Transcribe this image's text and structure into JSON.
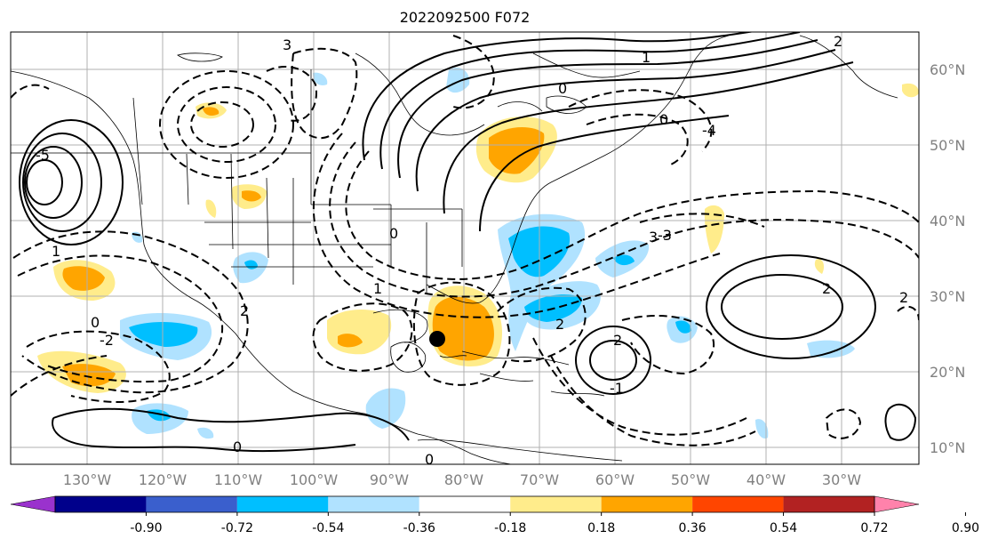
{
  "title": "2022092500 F072",
  "map": {
    "lat_labels": [
      "60°N",
      "50°N",
      "40°N",
      "30°N",
      "20°N",
      "10°N"
    ],
    "lon_labels": [
      "130°W",
      "120°W",
      "110°W",
      "100°W",
      "90°W",
      "80°W",
      "70°W",
      "60°W",
      "50°W",
      "40°W",
      "30°W"
    ],
    "contour_labels": [
      "3",
      "2",
      "1",
      "0",
      "-1",
      "-2",
      "-3",
      "-4",
      "-5",
      "1",
      "0",
      "2",
      "2",
      "2",
      "2",
      "0",
      "0",
      "0",
      "0",
      "1",
      "2",
      "3"
    ],
    "marker": "storm-center-dot",
    "colors": {
      "land_line": "#000000",
      "grid": "#b0b0b0",
      "contour": "#000000"
    }
  },
  "colorbar": {
    "boundaries": [
      "-0.90",
      "-0.72",
      "-0.54",
      "-0.36",
      "-0.18",
      "0.18",
      "0.36",
      "0.54",
      "0.72",
      "0.90"
    ],
    "colors": [
      "#9a32cd",
      "#00008b",
      "#3a5fcd",
      "#00bfff",
      "#b0e2ff",
      "#ffffff",
      "#ffec8b",
      "#ffa500",
      "#ff4500",
      "#b22222",
      "#ff82ab"
    ]
  }
}
